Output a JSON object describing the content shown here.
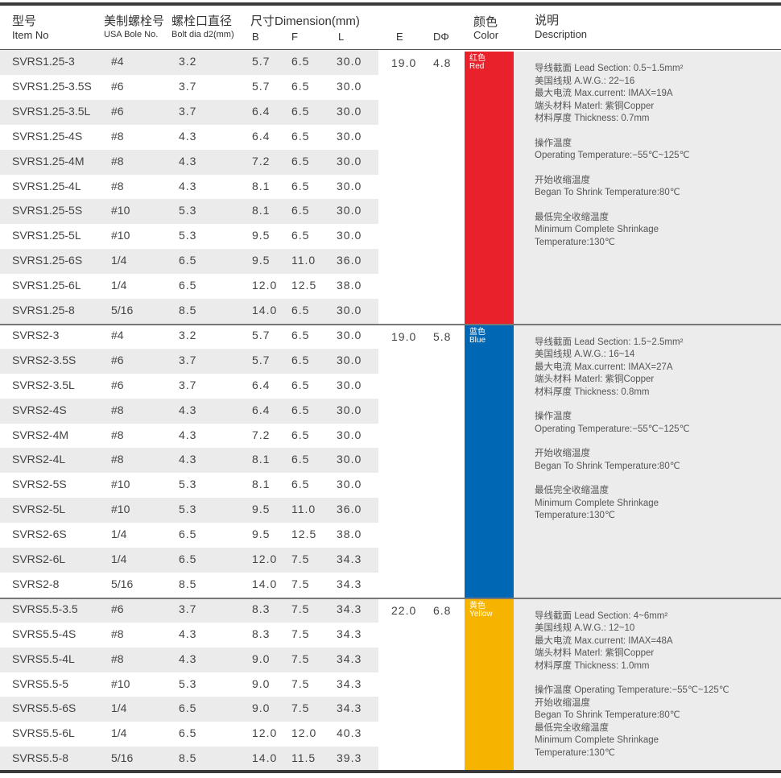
{
  "header": {
    "item_zh": "型号",
    "item_en": "Item No",
    "usa_zh": "美制螺栓号",
    "usa_en": "USA Bole No.",
    "bolt_zh": "螺栓口直径",
    "bolt_en": "Bolt dia d2(mm)",
    "dim_zh": "尺寸Dimension(mm)",
    "b": "B",
    "f": "F",
    "l": "L",
    "e": "E",
    "d": "DΦ",
    "color_zh": "颜色",
    "color_en": "Color",
    "desc_zh": "说明",
    "desc_en": "Description"
  },
  "groups": [
    {
      "e": "19.0",
      "d": "4.8",
      "color_zh": "红色",
      "color_en": "Red",
      "color_hex": "#e8212b",
      "rows": [
        [
          "SVRS1.25-3",
          "#4",
          "3.2",
          "5.7",
          "6.5",
          "30.0"
        ],
        [
          "SVRS1.25-3.5S",
          "#6",
          "3.7",
          "5.7",
          "6.5",
          "30.0"
        ],
        [
          "SVRS1.25-3.5L",
          "#6",
          "3.7",
          "6.4",
          "6.5",
          "30.0"
        ],
        [
          "SVRS1.25-4S",
          "#8",
          "4.3",
          "6.4",
          "6.5",
          "30.0"
        ],
        [
          "SVRS1.25-4M",
          "#8",
          "4.3",
          "7.2",
          "6.5",
          "30.0"
        ],
        [
          "SVRS1.25-4L",
          "#8",
          "4.3",
          "8.1",
          "6.5",
          "30.0"
        ],
        [
          "SVRS1.25-5S",
          "#10",
          "5.3",
          "8.1",
          "6.5",
          "30.0"
        ],
        [
          "SVRS1.25-5L",
          "#10",
          "5.3",
          "9.5",
          "6.5",
          "30.0"
        ],
        [
          "SVRS1.25-6S",
          "1/4",
          "6.5",
          "9.5",
          "11.0",
          "36.0"
        ],
        [
          "SVRS1.25-6L",
          "1/4",
          "6.5",
          "12.0",
          "12.5",
          "38.0"
        ],
        [
          "SVRS1.25-8",
          "5/16",
          "8.5",
          "14.0",
          "6.5",
          "30.0"
        ]
      ],
      "desc": [
        "导线截面 Lead Section: 0.5~1.5mm²",
        "美国线规 A.W.G.: 22~16",
        "最大电流 Max.current: IMAX=19A",
        "端头材料 Materl: 紫铜Copper",
        "材料厚度 Thickness: 0.7mm",
        "",
        "操作温度",
        "Operating Temperature:−55℃~125℃",
        "",
        "开始收缩温度",
        "Began To Shrink Temperature:80℃",
        "",
        "最低完全收缩温度",
        "Minimum Complete Shrinkage",
        "Temperature:130℃"
      ]
    },
    {
      "e": "19.0",
      "d": "5.8",
      "color_zh": "蓝色",
      "color_en": "Blue",
      "color_hex": "#0067b4",
      "rows": [
        [
          "SVRS2-3",
          "#4",
          "3.2",
          "5.7",
          "6.5",
          "30.0"
        ],
        [
          "SVRS2-3.5S",
          "#6",
          "3.7",
          "5.7",
          "6.5",
          "30.0"
        ],
        [
          "SVRS2-3.5L",
          "#6",
          "3.7",
          "6.4",
          "6.5",
          "30.0"
        ],
        [
          "SVRS2-4S",
          "#8",
          "4.3",
          "6.4",
          "6.5",
          "30.0"
        ],
        [
          "SVRS2-4M",
          "#8",
          "4.3",
          "7.2",
          "6.5",
          "30.0"
        ],
        [
          "SVRS2-4L",
          "#8",
          "4.3",
          "8.1",
          "6.5",
          "30.0"
        ],
        [
          "SVRS2-5S",
          "#10",
          "5.3",
          "8.1",
          "6.5",
          "30.0"
        ],
        [
          "SVRS2-5L",
          "#10",
          "5.3",
          "9.5",
          "11.0",
          "36.0"
        ],
        [
          "SVRS2-6S",
          "1/4",
          "6.5",
          "9.5",
          "12.5",
          "38.0"
        ],
        [
          "SVRS2-6L",
          "1/4",
          "6.5",
          "12.0",
          "7.5",
          "34.3"
        ],
        [
          "SVRS2-8",
          "5/16",
          "8.5",
          "14.0",
          "7.5",
          "34.3"
        ]
      ],
      "desc": [
        "导线截面 Lead Section: 1.5~2.5mm²",
        "美国线规 A.W.G.: 16~14",
        "最大电流 Max.current: IMAX=27A",
        "端头材料 Materl: 紫铜Copper",
        "材料厚度 Thickness: 0.8mm",
        "",
        "操作温度",
        "Operating Temperature:−55℃~125℃",
        "",
        "开始收缩温度",
        "Began To Shrink Temperature:80℃",
        "",
        "最低完全收缩温度",
        "Minimum Complete Shrinkage",
        "Temperature:130℃"
      ]
    },
    {
      "e": "22.0",
      "d": "6.8",
      "color_zh": "黄色",
      "color_en": "Yellow",
      "color_hex": "#f6b400",
      "rows": [
        [
          "SVRS5.5-3.5",
          "#6",
          "3.7",
          "8.3",
          "7.5",
          "34.3"
        ],
        [
          "SVRS5.5-4S",
          "#8",
          "4.3",
          "8.3",
          "7.5",
          "34.3"
        ],
        [
          "SVRS5.5-4L",
          "#8",
          "4.3",
          "9.0",
          "7.5",
          "34.3"
        ],
        [
          "SVRS5.5-5",
          "#10",
          "5.3",
          "9.0",
          "7.5",
          "34.3"
        ],
        [
          "SVRS5.5-6S",
          "1/4",
          "6.5",
          "9.0",
          "7.5",
          "34.3"
        ],
        [
          "SVRS5.5-6L",
          "1/4",
          "6.5",
          "12.0",
          "12.0",
          "40.3"
        ],
        [
          "SVRS5.5-8",
          "5/16",
          "8.5",
          "14.0",
          "11.5",
          "39.3"
        ]
      ],
      "desc": [
        "导线截面 Lead Section: 4~6mm²",
        "美国线规 A.W.G.: 12~10",
        "最大电流 Max.current: IMAX=48A",
        "端头材料 Materl: 紫铜Copper",
        "材料厚度 Thickness: 1.0mm",
        "",
        "操作温度 Operating Temperature:−55℃~125℃",
        "开始收缩温度",
        "Began To Shrink Temperature:80℃",
        "最低完全收缩温度",
        "Minimum Complete Shrinkage",
        "Temperature:130℃"
      ]
    }
  ]
}
